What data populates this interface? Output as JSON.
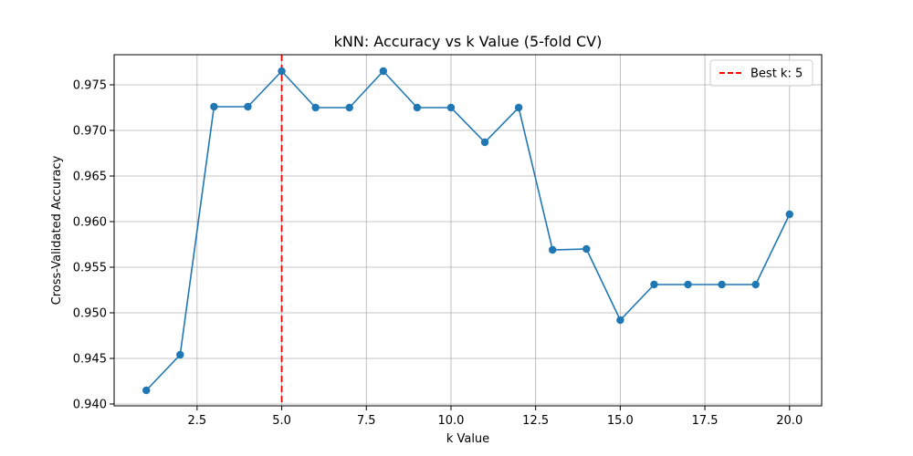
{
  "chart_data": {
    "type": "line",
    "title": "kNN: Accuracy vs k Value (5-fold CV)",
    "xlabel": "k Value",
    "ylabel": "Cross-Validated Accuracy",
    "xlim": [
      0.05,
      20.95
    ],
    "ylim": [
      0.9398,
      0.9783
    ],
    "xticks": [
      2.5,
      5.0,
      7.5,
      10.0,
      12.5,
      15.0,
      17.5,
      20.0
    ],
    "xtick_labels": [
      "2.5",
      "5.0",
      "7.5",
      "10.0",
      "12.5",
      "15.0",
      "17.5",
      "20.0"
    ],
    "yticks": [
      0.94,
      0.945,
      0.95,
      0.955,
      0.96,
      0.965,
      0.97,
      0.975
    ],
    "ytick_labels": [
      "0.940",
      "0.945",
      "0.950",
      "0.955",
      "0.960",
      "0.965",
      "0.970",
      "0.975"
    ],
    "grid": true,
    "series": [
      {
        "name": "Accuracy",
        "color": "#1f77b4",
        "x": [
          1,
          2,
          3,
          4,
          5,
          6,
          7,
          8,
          9,
          10,
          11,
          12,
          13,
          14,
          15,
          16,
          17,
          18,
          19,
          20
        ],
        "y": [
          0.9415,
          0.9454,
          0.9726,
          0.9726,
          0.9765,
          0.9725,
          0.9725,
          0.9765,
          0.9725,
          0.9725,
          0.9687,
          0.9725,
          0.9569,
          0.957,
          0.9492,
          0.9531,
          0.9531,
          0.9531,
          0.9531,
          0.9608
        ]
      }
    ],
    "vline": {
      "x": 5,
      "color": "#ff0000",
      "style": "dashed"
    },
    "legend": {
      "position": "top-right",
      "entries": [
        {
          "label": "Best k: 5",
          "color": "#ff0000",
          "style": "dashed"
        }
      ]
    }
  }
}
